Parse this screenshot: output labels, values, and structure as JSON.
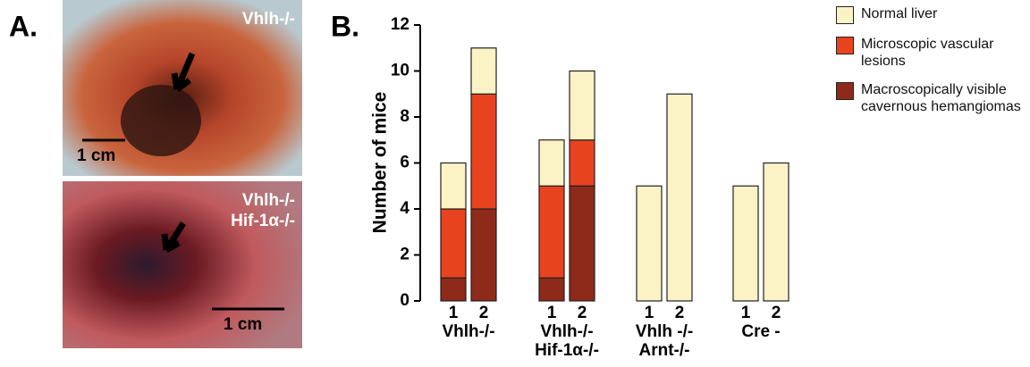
{
  "panel_a": {
    "label": "A.",
    "photos": [
      {
        "labels": [
          "Vhlh-/-"
        ],
        "scale": "1 cm"
      },
      {
        "labels": [
          "Vhlh-/-",
          "Hif-1α-/-"
        ],
        "scale": "1 cm"
      }
    ]
  },
  "chart_data": {
    "type": "stacked_bar",
    "panel_label": "B.",
    "y_label": "Number of mice",
    "categories": [
      "1",
      "2",
      "1",
      "2",
      "1",
      "2",
      "1",
      "2"
    ],
    "groups": [
      [
        "Vhlh-/-"
      ],
      [
        "Vhlh-/-",
        "Hif-1α-/-"
      ],
      [
        "Vhlh -/-",
        "Arnt-/-"
      ],
      [
        "Cre -"
      ]
    ],
    "series": [
      {
        "name": "Normal liver",
        "color": "#fbf3c6",
        "values": [
          2,
          2,
          2,
          3,
          5,
          9,
          5,
          6
        ]
      },
      {
        "name": "Microscopic vascular lesions",
        "color": "#e8431f",
        "values": [
          3,
          5,
          4,
          2,
          0,
          0,
          0,
          0
        ]
      },
      {
        "name": "Macroscopically visible cavernous hemangiomas",
        "color": "#8e2a1a",
        "values": [
          1,
          4,
          1,
          5,
          0,
          0,
          0,
          0
        ]
      }
    ],
    "ylim": [
      0,
      12
    ],
    "yticks": [
      0,
      2,
      4,
      6,
      8,
      10,
      12
    ],
    "grid": false
  }
}
